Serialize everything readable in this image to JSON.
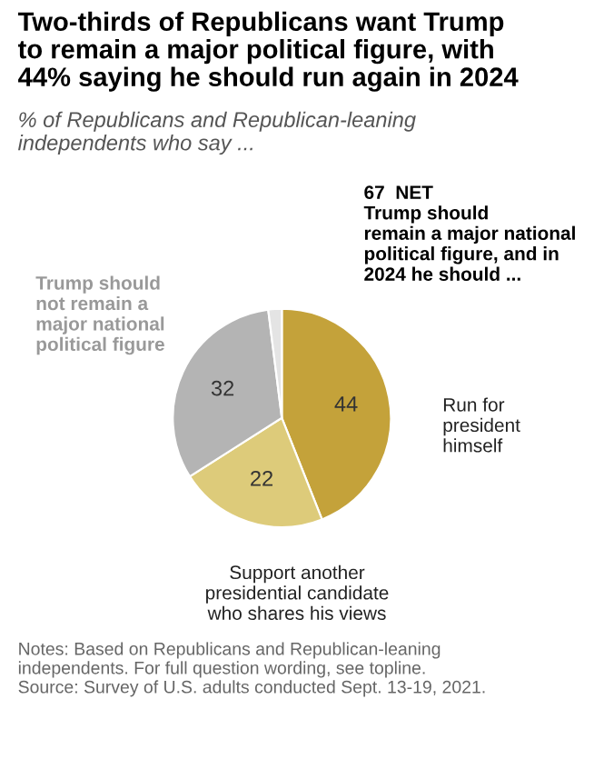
{
  "chart_data": {
    "type": "pie",
    "title": "Two-thirds of Republicans want Trump\nto remain a major political figure, with\n44% saying he should run again in 2024",
    "subtitle": "% of Republicans and Republican-leaning\nindependents who say ...",
    "categories": [
      "Run for\npresident\nhimself",
      "Support another\npresidential candidate\nwho shares his views",
      "Trump should\nnot remain a\nmajor national\npolitical figure",
      null
    ],
    "values": [
      44,
      22,
      32,
      2
    ],
    "colors": [
      "#c4a23a",
      "#ddcb7a",
      "#b4b4b4",
      "#e4e4e4"
    ],
    "value_labels": [
      "44",
      "22",
      "32",
      null
    ],
    "annotations": [
      "67  NET\nTrump should\nremain a major national\npolitical figure, and in\n2024 he should ...",
      "Notes: Based on Republicans and Republican-leaning\nindependents. For full question wording, see topline.\nSource: Survey of U.S. adults conducted Sept. 13-19, 2021."
    ]
  }
}
